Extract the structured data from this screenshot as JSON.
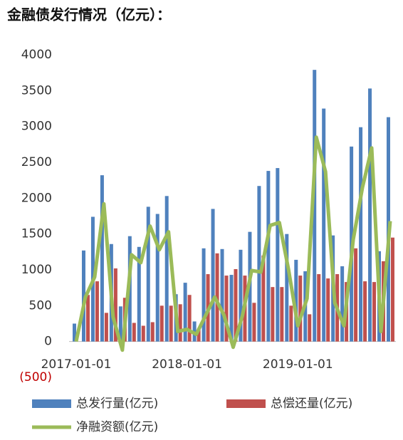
{
  "chart_data": {
    "type": "bar_line",
    "title": "金融债发行情况（亿元）：",
    "categories": [
      "2017-01-01",
      null,
      null,
      null,
      null,
      null,
      null,
      null,
      null,
      null,
      null,
      null,
      "2018-01-01",
      null,
      null,
      null,
      null,
      null,
      null,
      null,
      null,
      null,
      null,
      null,
      "2019-01-01",
      null,
      null,
      null,
      null,
      null,
      null,
      null,
      null,
      null,
      null
    ],
    "series": [
      {
        "name": "总发行量(亿元)",
        "color": "#4f81bd",
        "kind": "bar",
        "values": [
          250,
          1270,
          1740,
          2320,
          1360,
          490,
          1470,
          1320,
          1880,
          1780,
          2030,
          660,
          820,
          280,
          1300,
          1850,
          1290,
          930,
          1280,
          1530,
          2170,
          2380,
          2420,
          1500,
          1140,
          980,
          3790,
          3250,
          1480,
          1050,
          2720,
          2990,
          3530,
          1260,
          3130
        ]
      },
      {
        "name": "总偿还量(亿元)",
        "color": "#c0504d",
        "kind": "bar",
        "values": [
          0,
          650,
          840,
          400,
          1020,
          610,
          260,
          220,
          270,
          500,
          500,
          520,
          650,
          180,
          940,
          1230,
          920,
          1010,
          920,
          540,
          1200,
          760,
          760,
          500,
          920,
          380,
          940,
          880,
          940,
          830,
          1300,
          840,
          830,
          1120,
          1450
        ]
      },
      {
        "name": "净融资额(亿元)",
        "color": "#9bbb59",
        "kind": "line",
        "values": [
          0,
          620,
          900,
          1920,
          340,
          -120,
          1210,
          1100,
          1610,
          1280,
          1530,
          140,
          170,
          100,
          360,
          620,
          370,
          -80,
          360,
          990,
          970,
          1620,
          1660,
          1000,
          220,
          600,
          2850,
          2370,
          540,
          220,
          1420,
          2150,
          2700,
          140,
          1680
        ]
      }
    ],
    "ylim": [
      -500,
      4000
    ],
    "yticks": [
      {
        "value": -500,
        "label": "(500)"
      },
      0,
      500,
      1000,
      1500,
      2000,
      2500,
      3000,
      3500,
      4000
    ],
    "negative_label_color": "#c00000",
    "legend": "bottom"
  }
}
